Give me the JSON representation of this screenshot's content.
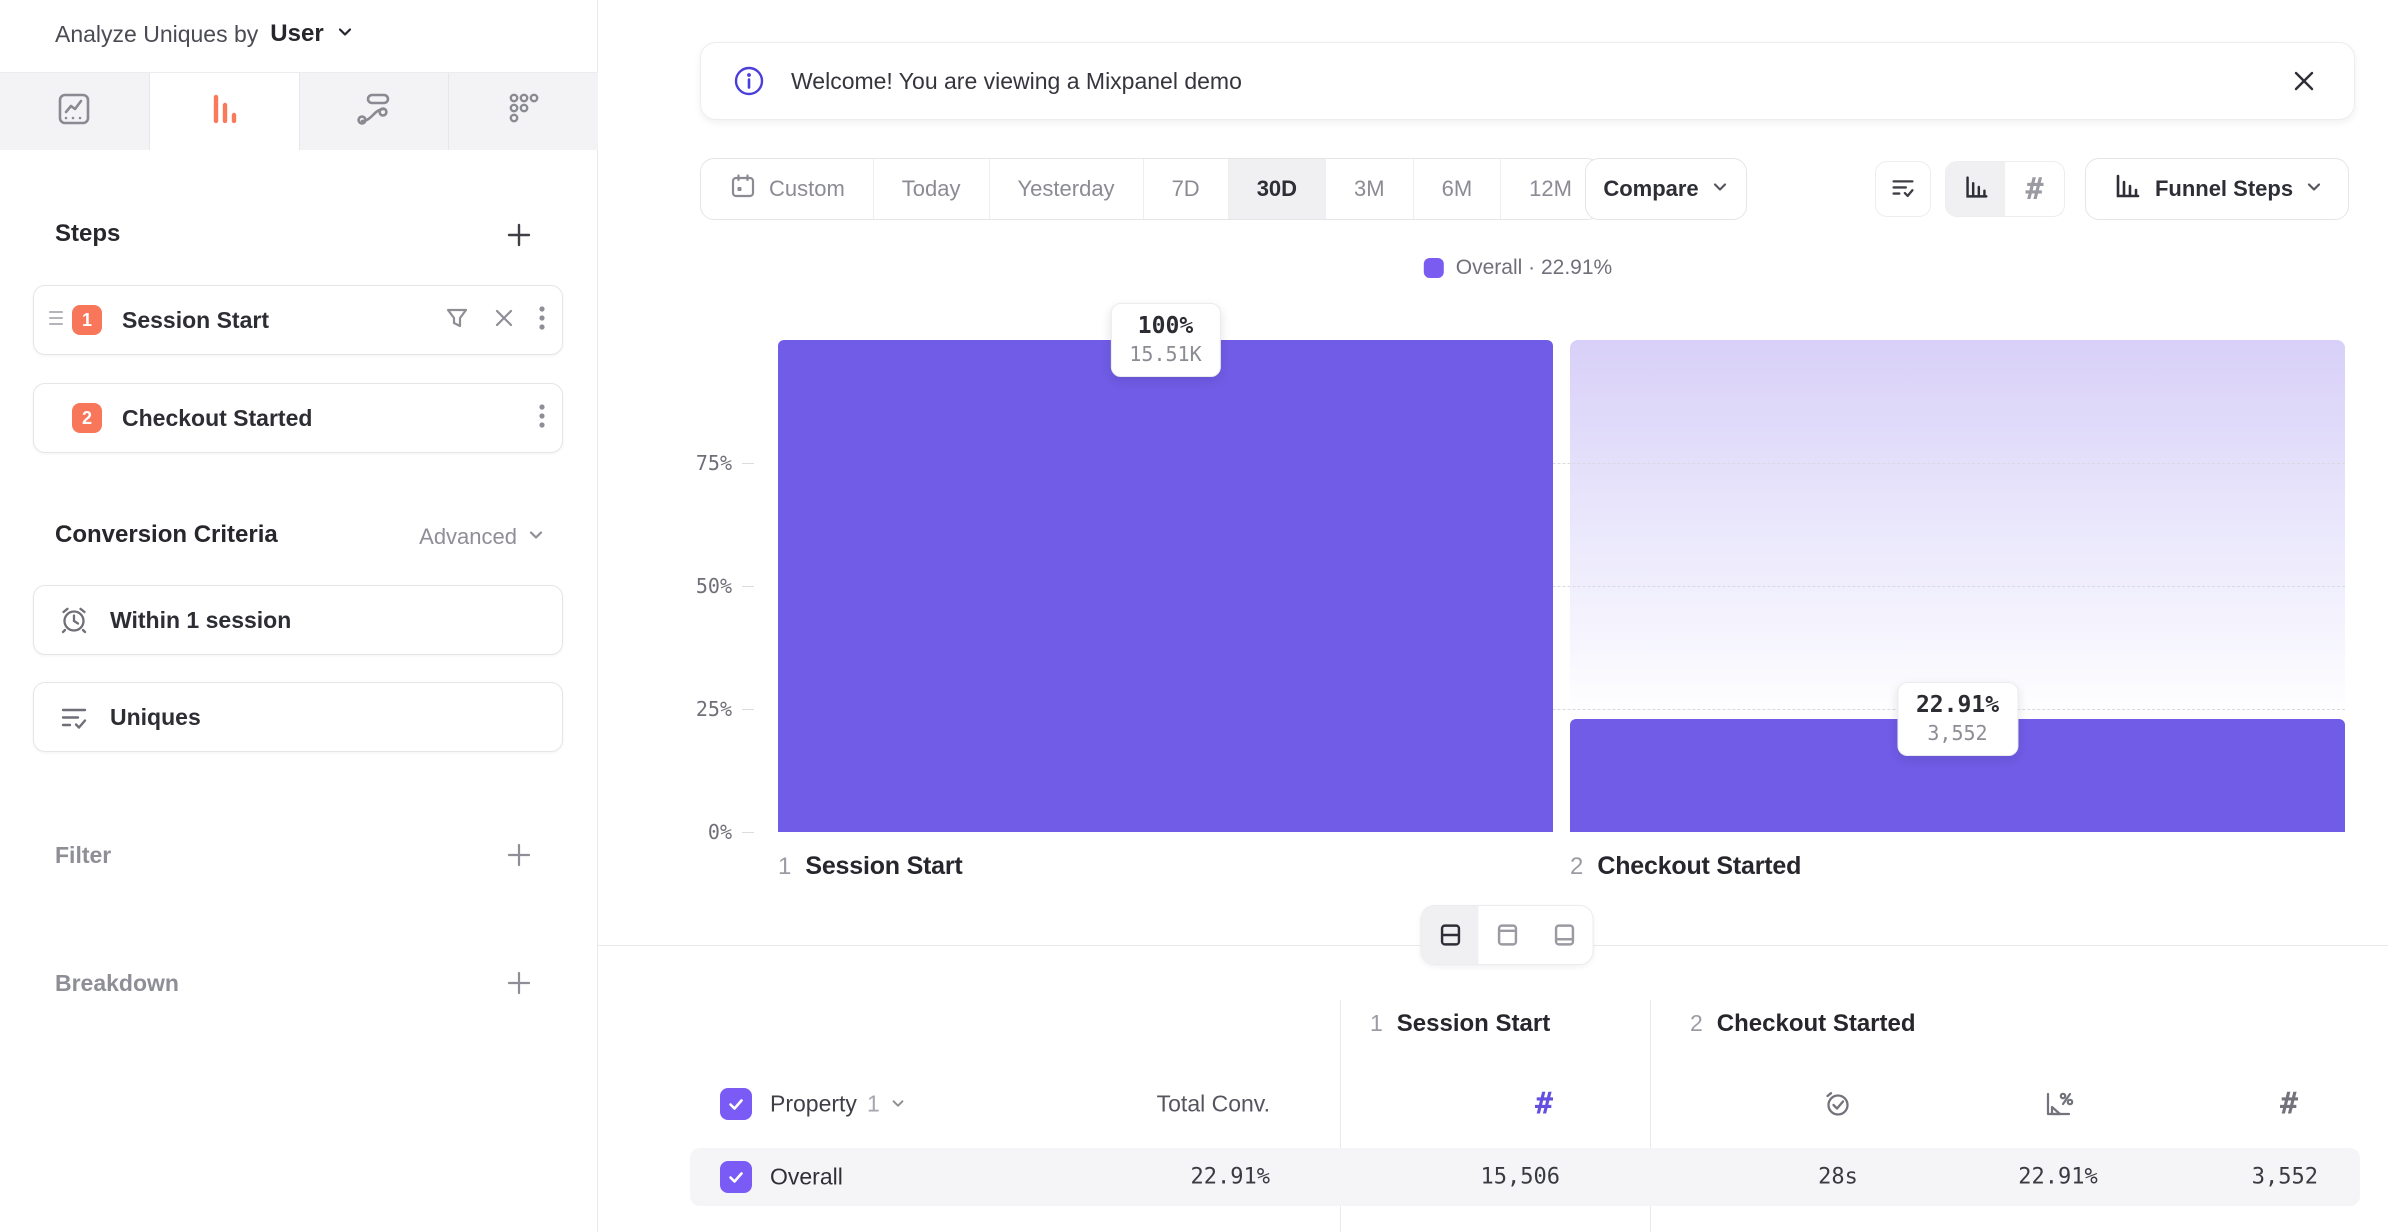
{
  "sidebar": {
    "analyze_prefix": "Analyze Uniques by",
    "analyze_value": "User",
    "tabs": [
      {
        "name": "insights",
        "active": false
      },
      {
        "name": "funnels",
        "active": true
      },
      {
        "name": "flows",
        "active": false
      },
      {
        "name": "retention",
        "active": false
      }
    ],
    "steps": {
      "title": "Steps",
      "items": [
        {
          "number": "1",
          "label": "Session Start"
        },
        {
          "number": "2",
          "label": "Checkout Started"
        }
      ]
    },
    "conversion_criteria": {
      "title": "Conversion Criteria",
      "advanced_label": "Advanced",
      "window": "Within 1 session",
      "counting": "Uniques"
    },
    "filter_label": "Filter",
    "breakdown_label": "Breakdown"
  },
  "banner": {
    "message": "Welcome! You are viewing a Mixpanel demo"
  },
  "toolbar": {
    "date_options": [
      "Custom",
      "Today",
      "Yesterday",
      "7D",
      "30D",
      "3M",
      "6M",
      "12M"
    ],
    "selected_range": "30D",
    "compare_label": "Compare",
    "view_selector_label": "Funnel Steps"
  },
  "legend": {
    "text": "Overall · 22.91%"
  },
  "chart_data": {
    "type": "bar",
    "subtype": "funnel-steps",
    "categories": [
      "Session Start",
      "Checkout Started"
    ],
    "step_numbers": [
      "1",
      "2"
    ],
    "series": [
      {
        "name": "Overall",
        "conversion_pct": [
          100,
          22.91
        ],
        "counts": [
          15506,
          3552
        ]
      }
    ],
    "bar_labels": [
      {
        "pct": "100%",
        "count": "15.51K"
      },
      {
        "pct": "22.91%",
        "count": "3,552"
      }
    ],
    "y_ticks": [
      {
        "value": 75,
        "label": "75%"
      },
      {
        "value": 50,
        "label": "50%"
      },
      {
        "value": 25,
        "label": "25%"
      },
      {
        "value": 0,
        "label": "0%"
      }
    ],
    "ylim": [
      0,
      100
    ],
    "overall_conversion": "22.91%",
    "grid": "dashed-horizontal",
    "legend_position": "top-center",
    "bar_color": "#715ce7"
  },
  "table": {
    "group_headers": [
      {
        "number": "1",
        "label": "Session Start"
      },
      {
        "number": "2",
        "label": "Checkout Started"
      }
    ],
    "property_label": "Property",
    "property_number": "1",
    "total_conv_label": "Total Conv.",
    "rows": [
      {
        "label": "Overall",
        "total_conv": "22.91%",
        "step1_count": "15,506",
        "step2_time_to_convert": "28s",
        "step2_conv_rate": "22.91%",
        "step2_count": "3,552"
      }
    ]
  }
}
